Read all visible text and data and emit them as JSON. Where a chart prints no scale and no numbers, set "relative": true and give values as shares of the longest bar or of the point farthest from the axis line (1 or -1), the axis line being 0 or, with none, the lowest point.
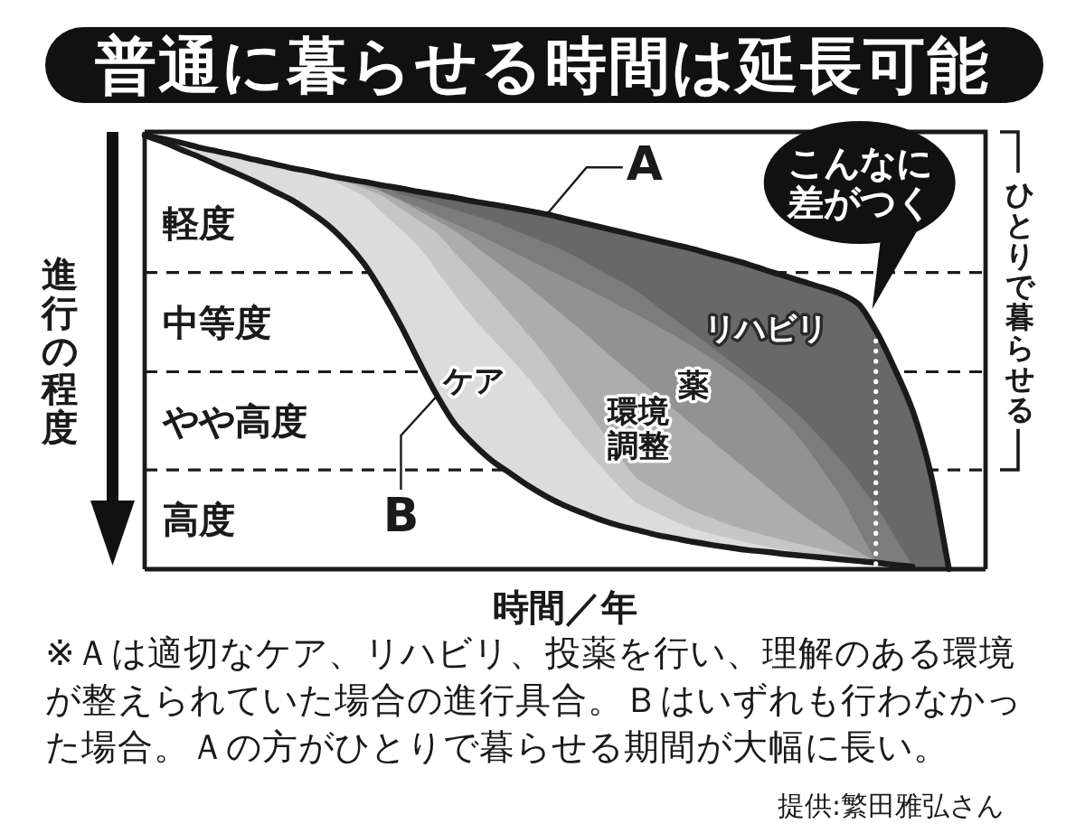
{
  "chart_data": {
    "type": "area",
    "title": "普通に暮らせる時間は延長可能",
    "ylabel": "進行の程度",
    "xlabel": "時間／年",
    "relative": true,
    "categories": [
      null,
      null,
      null,
      null,
      null,
      null,
      null,
      null,
      null,
      null,
      null,
      null,
      null,
      null,
      null,
      null,
      null,
      null,
      null,
      null,
      null,
      null,
      null,
      null,
      null,
      null,
      null,
      null,
      null,
      null,
      null,
      null,
      null,
      null,
      null,
      null,
      null,
      null,
      null,
      null,
      null,
      null,
      null,
      null,
      null,
      null,
      null
    ],
    "series": [
      {
        "name": "A",
        "type": "line",
        "color": "#1a1a1a",
        "values": [
          1,
          0.992,
          0.983,
          0.972,
          0.963,
          0.954,
          0.944,
          0.935,
          0.925,
          0.917,
          0.908,
          0.9,
          0.893,
          0.885,
          0.878,
          0.87,
          0.863,
          0.856,
          0.848,
          0.841,
          0.834,
          0.826,
          0.818,
          0.808,
          0.798,
          0.788,
          0.778,
          0.768,
          0.758,
          0.748,
          0.738,
          0.726,
          0.715,
          0.703,
          0.689,
          0.676,
          0.663,
          0.65,
          0.636,
          0.613,
          0.55,
          0.465,
          0.367,
          0.221,
          0,
          null,
          null
        ]
      },
      {
        "name": "リハビリ",
        "type": "area",
        "color": "#686868",
        "values": [
          null,
          null,
          null,
          null,
          null,
          null,
          null,
          null,
          null,
          null,
          null,
          null,
          null,
          0.885,
          0.878,
          0.87,
          0.863,
          0.856,
          0.848,
          0.841,
          0.834,
          0.826,
          0.818,
          0.808,
          0.798,
          0.788,
          0.778,
          0.768,
          0.758,
          0.748,
          0.738,
          0.726,
          0.715,
          0.703,
          0.689,
          0.676,
          0.663,
          0.65,
          0.636,
          0.613,
          0.55,
          0.465,
          0.367,
          0.221,
          0,
          null,
          null
        ]
      },
      {
        "type": "area",
        "color": "#7c7c7c",
        "values": [
          null,
          null,
          null,
          null,
          null,
          null,
          null,
          null,
          null,
          null,
          null,
          null,
          0.893,
          0.885,
          0.863,
          0.852,
          0.84,
          0.827,
          0.814,
          0.801,
          0.784,
          0.767,
          0.75,
          0.732,
          0.709,
          0.685,
          0.663,
          0.637,
          0.605,
          0.574,
          0.543,
          0.511,
          0.479,
          0.447,
          0.415,
          0.383,
          0.345,
          0.3,
          0.254,
          0.2,
          0.144,
          0.075,
          0.006,
          null,
          null,
          null,
          null
        ]
      },
      {
        "name": "薬",
        "type": "area",
        "color": "#929292",
        "values": [
          null,
          null,
          null,
          null,
          null,
          null,
          null,
          null,
          null,
          null,
          null,
          0.9,
          0.893,
          0.87,
          0.851,
          0.833,
          0.813,
          0.794,
          0.775,
          0.754,
          0.733,
          0.712,
          0.691,
          0.67,
          0.649,
          0.628,
          0.605,
          0.584,
          0.56,
          0.537,
          0.512,
          0.484,
          0.455,
          0.423,
          0.38,
          0.338,
          0.29,
          0.231,
          0.172,
          0.093,
          0.015,
          null,
          null,
          null,
          null,
          null,
          null
        ]
      },
      {
        "name": "環境調整",
        "type": "area",
        "color": "#adadad",
        "values": [
          null,
          null,
          null,
          null,
          null,
          null,
          null,
          null,
          null,
          null,
          0.908,
          0.9,
          0.882,
          0.868,
          0.848,
          0.825,
          0.802,
          0.778,
          0.746,
          0.714,
          0.683,
          0.65,
          0.615,
          0.58,
          0.545,
          0.508,
          0.472,
          0.436,
          0.4,
          0.365,
          0.33,
          0.295,
          0.26,
          0.225,
          0.19,
          0.155,
          0.123,
          0.095,
          0.066,
          0.04,
          0.015,
          null,
          null,
          null,
          null,
          null,
          null
        ]
      },
      {
        "type": "area",
        "color": "#c6c6c6",
        "values": [
          null,
          null,
          null,
          null,
          null,
          null,
          null,
          null,
          null,
          0.917,
          0.908,
          0.891,
          0.876,
          0.859,
          0.83,
          0.803,
          0.772,
          0.726,
          0.681,
          0.635,
          0.587,
          0.538,
          0.487,
          0.43,
          0.375,
          0.317,
          0.256,
          0.205,
          0.18,
          0.155,
          0.133,
          0.117,
          0.101,
          0.088,
          0.076,
          0.065,
          0.055,
          0.045,
          0.035,
          0.025,
          0.015,
          null,
          null,
          null,
          null,
          null,
          null
        ]
      },
      {
        "name": "ケア",
        "type": "area",
        "color": "#dcdcdc",
        "values": [
          1,
          0.992,
          0.983,
          0.972,
          0.963,
          0.954,
          0.944,
          0.935,
          0.925,
          0.917,
          0.9,
          0.88,
          0.858,
          0.82,
          0.782,
          0.741,
          0.685,
          0.628,
          0.575,
          0.53,
          0.485,
          0.438,
          0.385,
          0.331,
          0.28,
          0.233,
          0.187,
          0.149,
          0.129,
          0.109,
          0.092,
          0.08,
          0.07,
          0.06,
          0.051,
          0.043,
          0.035,
          0.03,
          0.024,
          0.019,
          null,
          null,
          null,
          null,
          null,
          null,
          null
        ]
      },
      {
        "name": "B",
        "type": "line",
        "color": "#1a1a1a",
        "values": [
          1,
          0.985,
          0.967,
          0.95,
          0.931,
          0.913,
          0.894,
          0.873,
          0.852,
          0.825,
          0.794,
          0.754,
          0.704,
          0.638,
          0.563,
          0.479,
          0.4,
          0.333,
          0.288,
          0.25,
          0.221,
          0.192,
          0.167,
          0.146,
          0.129,
          0.113,
          0.1,
          0.09,
          0.079,
          0.071,
          0.063,
          0.056,
          0.05,
          0.044,
          0.04,
          0.035,
          0.031,
          0.027,
          0.023,
          0.019,
          0.015,
          0.01,
          0.006,
          null,
          null,
          null,
          null
        ]
      }
    ],
    "ref_lines": [
      {
        "axis": "y",
        "value": 0.684,
        "line_style": "dashed",
        "color": "#1a1a1a"
      },
      {
        "axis": "y",
        "value": 0.455,
        "line_style": "dashed",
        "color": "#1a1a1a"
      },
      {
        "axis": "y",
        "value": 0.229,
        "line_style": "dashed",
        "color": "#1a1a1a"
      }
    ],
    "annotations": [
      "軽度",
      "中等度",
      "やや高度",
      "高度",
      "こんなに差がつく",
      "ひとりで暮らせる",
      "※Ａは適切なケア、リハビリ、投薬を行い、理解のある環境が整えられていた場合の進行具合。Ｂはいずれも行わなかった場合。Ａの方がひとりで暮らせる期間が大幅に長い。",
      "提供:繁田雅弘さん"
    ]
  }
}
